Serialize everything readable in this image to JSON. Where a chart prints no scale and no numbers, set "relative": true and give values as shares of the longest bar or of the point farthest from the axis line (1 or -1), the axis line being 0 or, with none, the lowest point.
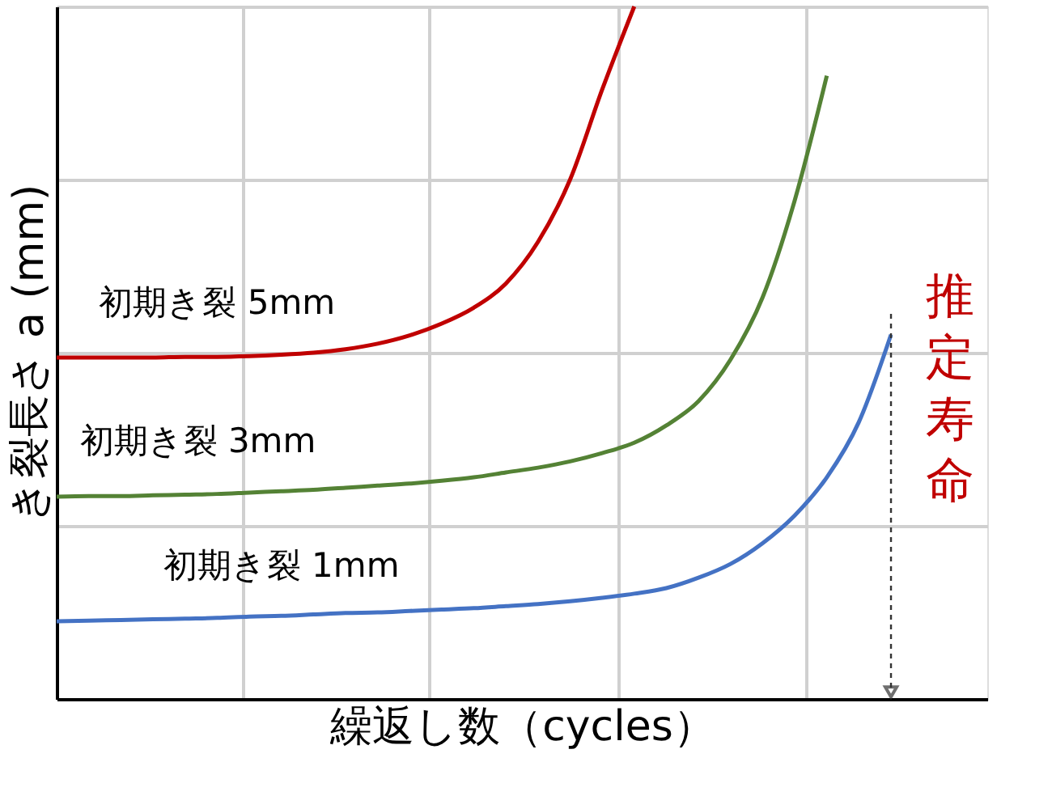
{
  "chart_data": {
    "type": "line",
    "relative": true,
    "xlabel": "繰返し数（cycles）",
    "ylabel": "き裂長さ a (mm)",
    "grid": true,
    "marker": "none",
    "line_style": "solid",
    "categories": [
      null,
      null,
      null,
      null,
      null,
      null,
      null,
      null,
      null,
      null,
      null,
      null,
      null,
      null,
      null,
      null,
      null,
      null,
      null,
      null,
      null,
      null,
      null,
      null,
      null,
      null,
      null,
      null,
      null,
      null
    ],
    "series": [
      {
        "name": "初期き裂 5mm",
        "color": "#c00000",
        "values": [
          0.493,
          0.493,
          0.493,
          0.493,
          0.494,
          0.494,
          0.495,
          0.497,
          0.5,
          0.505,
          0.513,
          0.525,
          0.542,
          0.565,
          0.6,
          0.66,
          0.75,
          0.88,
          1.0,
          null,
          null,
          null,
          null,
          null,
          null,
          null,
          null,
          null,
          null,
          null
        ]
      },
      {
        "name": "初期き裂 3mm",
        "color": "#548235",
        "values": [
          0.292,
          0.293,
          0.293,
          0.294,
          0.295,
          0.296,
          0.298,
          0.3,
          0.302,
          0.305,
          0.308,
          0.311,
          0.315,
          0.32,
          0.327,
          0.334,
          0.343,
          0.355,
          0.37,
          0.395,
          0.43,
          0.49,
          0.58,
          0.72,
          0.9,
          null,
          null,
          null,
          null,
          null
        ]
      },
      {
        "name": "初期き裂 1mm",
        "color": "#4472c4",
        "values": [
          0.112,
          0.113,
          0.114,
          0.115,
          0.116,
          0.117,
          0.119,
          0.12,
          0.122,
          0.124,
          0.125,
          0.127,
          0.129,
          0.131,
          0.134,
          0.137,
          0.141,
          0.146,
          0.152,
          0.16,
          0.175,
          0.195,
          0.225,
          0.265,
          0.32,
          0.4,
          0.526,
          null,
          null,
          null
        ]
      }
    ],
    "annotations": [
      "推定寿命"
    ]
  }
}
